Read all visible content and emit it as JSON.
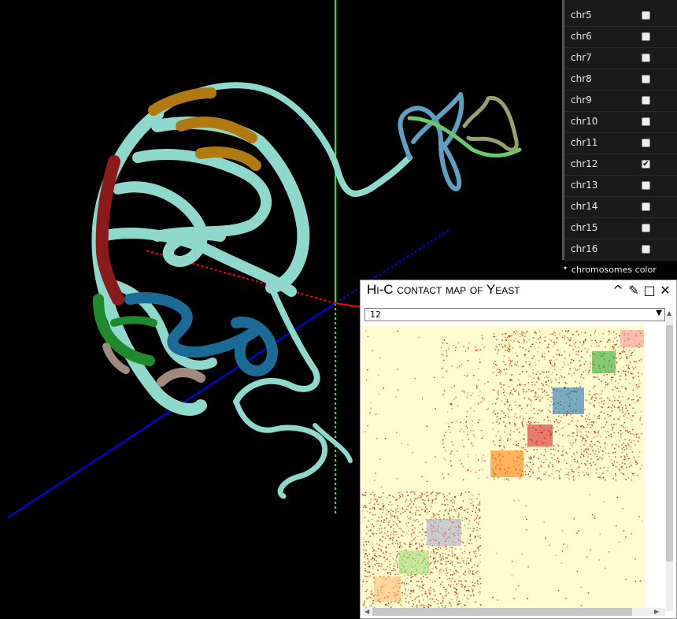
{
  "viewer": {
    "chromosome_colors": {
      "main": "#8fd8cc",
      "gold": "#b07a10",
      "maroon": "#8b1a1a",
      "green": "#1f8a2c",
      "blue": "#1a6b95",
      "taupe": "#a08a80",
      "olive": "#9aa06a",
      "lightgreen": "#6cc96c",
      "steelblue": "#5fa0c0"
    },
    "axes": {
      "x_color": "#ff0000",
      "y_color": "#00ff00",
      "z_color": "#0000ff"
    }
  },
  "chromosome_panel": {
    "items": [
      {
        "label": "chr5",
        "checked": false
      },
      {
        "label": "chr6",
        "checked": false
      },
      {
        "label": "chr7",
        "checked": false
      },
      {
        "label": "chr8",
        "checked": false
      },
      {
        "label": "chr9",
        "checked": false
      },
      {
        "label": "chr10",
        "checked": false
      },
      {
        "label": "chr11",
        "checked": false
      },
      {
        "label": "chr12",
        "checked": true
      },
      {
        "label": "chr13",
        "checked": false
      },
      {
        "label": "chr14",
        "checked": false
      },
      {
        "label": "chr15",
        "checked": false
      },
      {
        "label": "chr16",
        "checked": false
      }
    ],
    "folder_label": "chromosomes color"
  },
  "hic_window": {
    "title": "Hi-C contact map of Yeast",
    "selected_chromosome": "12",
    "background_color": "#fffdd0",
    "contact_color": "#cc2200",
    "tad_colors": [
      "#ff9999",
      "#33aa33",
      "#1f77b4",
      "#d62728",
      "#ff7f0e",
      "#aaaacc",
      "#99dd77",
      "#ffbb77"
    ]
  }
}
